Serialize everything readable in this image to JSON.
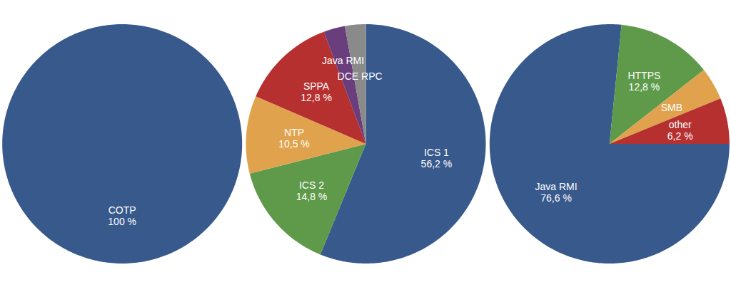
{
  "chart_data": [
    {
      "type": "pie",
      "categories": [
        "COTP"
      ],
      "values": [
        100
      ],
      "value_labels": [
        "100 %"
      ],
      "colors": [
        "#38598b"
      ],
      "data_labels": true
    },
    {
      "type": "pie",
      "categories": [
        "ICS 1",
        "ICS 2",
        "NTP",
        "SPPA",
        "Java RMI",
        "DCE RPC"
      ],
      "values": [
        56.2,
        14.8,
        10.5,
        12.8,
        2.9,
        2.8
      ],
      "value_labels": [
        "56,2 %",
        "14,8 %",
        "10,5 %",
        "12,8 %",
        null,
        null
      ],
      "colors": [
        "#38598b",
        "#5e9a4a",
        "#e0a24c",
        "#b5302f",
        "#6a3d7c",
        "#8a8a8a"
      ],
      "data_labels": true
    },
    {
      "type": "pie",
      "categories": [
        "Java RMI",
        "HTTPS",
        "SMB",
        "other"
      ],
      "values": [
        76.6,
        12.8,
        4.4,
        6.2
      ],
      "value_labels": [
        "76,6 %",
        "12,8 %",
        null,
        "6,2 %"
      ],
      "colors": [
        "#38598b",
        "#5e9a4a",
        "#e0a24c",
        "#b5302f"
      ],
      "data_labels": true
    }
  ]
}
